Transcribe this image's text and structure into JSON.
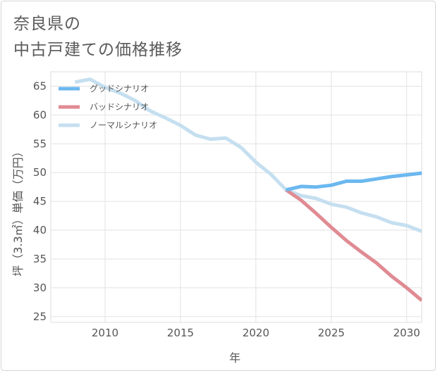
{
  "page": {
    "title_line1": "奈良県の",
    "title_line2": "中古戸建ての価格推移"
  },
  "chart_data": {
    "type": "line",
    "xlabel": "年",
    "ylabel": "坪（3.3㎡）単価（万円）",
    "xlim": [
      2006.4,
      2031
    ],
    "ylim": [
      24,
      67.5
    ],
    "xticks": [
      2010,
      2015,
      2020,
      2025,
      2030
    ],
    "yticks": [
      25,
      30,
      35,
      40,
      45,
      50,
      55,
      60,
      65
    ],
    "grid": true,
    "legend_position": "top-left",
    "series": [
      {
        "name": "グッドシナリオ",
        "color": "#6cb8f0",
        "x": [
          2022,
          2023,
          2024,
          2025,
          2026,
          2027,
          2028,
          2029,
          2030,
          2031
        ],
        "y": [
          47.0,
          47.6,
          47.5,
          47.8,
          48.5,
          48.5,
          48.9,
          49.3,
          49.6,
          49.9
        ]
      },
      {
        "name": "バッドシナリオ",
        "color": "#e08b93",
        "x": [
          2022,
          2023,
          2024,
          2025,
          2026,
          2027,
          2028,
          2029,
          2030,
          2031
        ],
        "y": [
          47.0,
          45.2,
          42.9,
          40.5,
          38.2,
          36.2,
          34.3,
          32.0,
          30.0,
          27.8
        ]
      },
      {
        "name": "ノーマルシナリオ",
        "color": "#c5dff0",
        "x": [
          2008,
          2009,
          2010,
          2011,
          2012,
          2013,
          2014,
          2015,
          2016,
          2017,
          2018,
          2019,
          2020,
          2021,
          2022,
          2023,
          2024,
          2025,
          2026,
          2027,
          2028,
          2029,
          2030,
          2031
        ],
        "y": [
          65.7,
          66.2,
          64.8,
          63.8,
          62.5,
          60.7,
          59.5,
          58.2,
          56.5,
          55.8,
          56.0,
          54.4,
          51.8,
          49.7,
          47.0,
          46.0,
          45.5,
          44.5,
          44.0,
          43.0,
          42.3,
          41.3,
          40.8,
          39.8
        ]
      }
    ]
  }
}
